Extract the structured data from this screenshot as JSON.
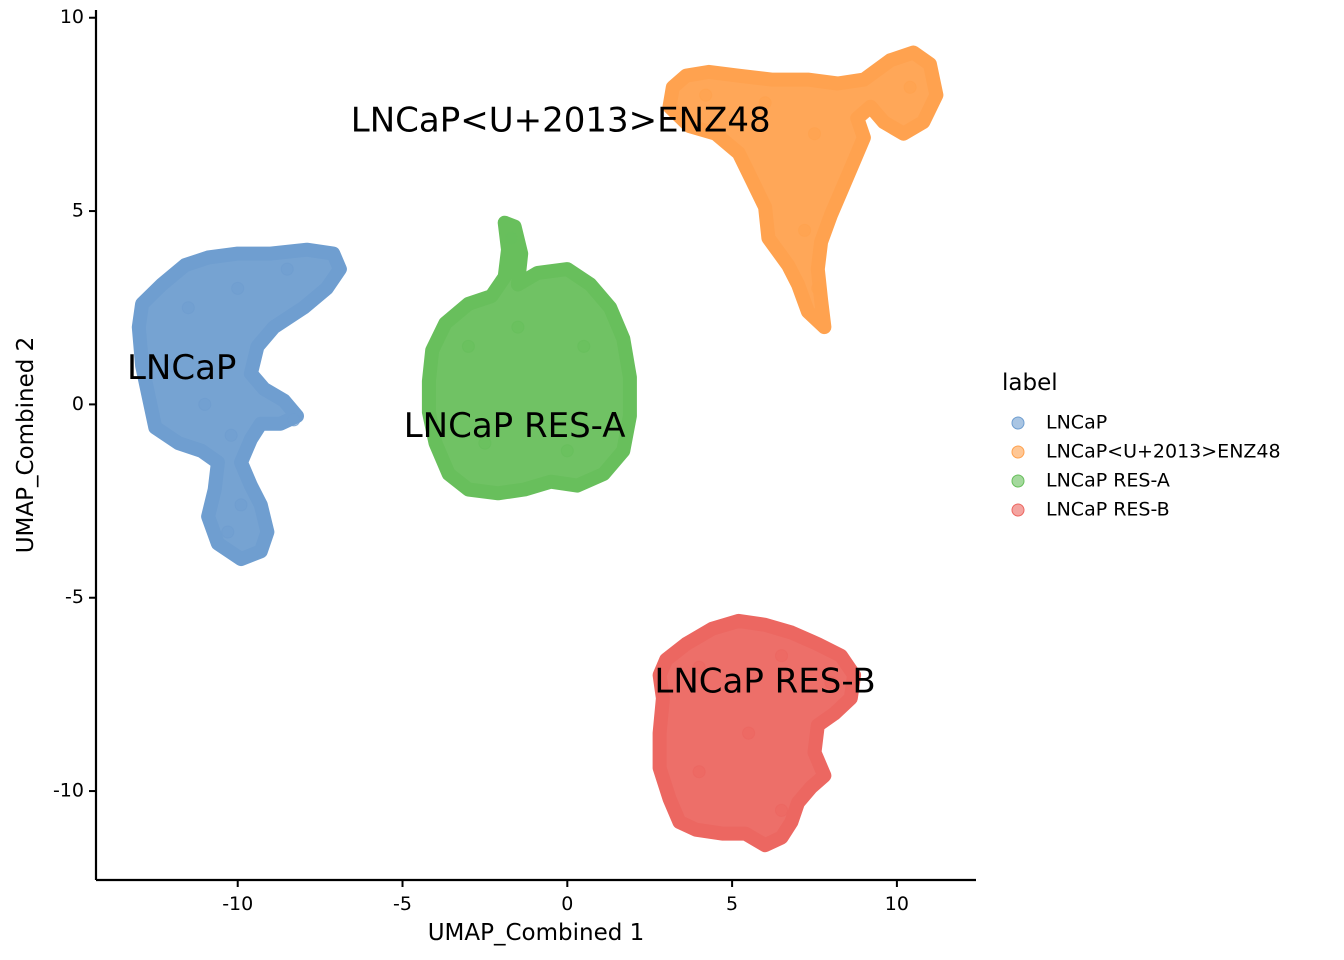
{
  "chart_data": {
    "type": "scatter",
    "title": "",
    "xlabel": "UMAP_Combined 1",
    "ylabel": "UMAP_Combined 2",
    "xlim": [
      -14.3,
      12.4
    ],
    "ylim": [
      -12.3,
      10.2
    ],
    "x_ticks": [
      -10,
      -5,
      0,
      5,
      10
    ],
    "y_ticks": [
      -10,
      -5,
      0,
      5,
      10
    ],
    "grid": false,
    "legend": {
      "title": "label",
      "placement": "right",
      "entries": [
        "LNCaP",
        "LNCaP<U+2013>ENZ48",
        "LNCaP RES-A",
        "LNCaP RES-B"
      ]
    },
    "series": [
      {
        "name": "LNCaP",
        "color": "#6f9ed0",
        "label_position": [
          -11.7,
          0.9
        ],
        "outline": [
          [
            -13.0,
            2.0
          ],
          [
            -12.9,
            2.6
          ],
          [
            -12.3,
            3.1
          ],
          [
            -11.6,
            3.6
          ],
          [
            -10.9,
            3.8
          ],
          [
            -10.0,
            3.9
          ],
          [
            -9.0,
            3.9
          ],
          [
            -7.9,
            4.0
          ],
          [
            -7.1,
            3.9
          ],
          [
            -6.9,
            3.5
          ],
          [
            -7.3,
            3.0
          ],
          [
            -8.0,
            2.5
          ],
          [
            -8.9,
            2.0
          ],
          [
            -9.4,
            1.5
          ],
          [
            -9.6,
            0.8
          ],
          [
            -9.2,
            0.4
          ],
          [
            -8.6,
            0.1
          ],
          [
            -8.2,
            -0.3
          ],
          [
            -8.7,
            -0.5
          ],
          [
            -9.3,
            -0.5
          ],
          [
            -9.6,
            -0.9
          ],
          [
            -9.9,
            -1.5
          ],
          [
            -9.6,
            -2.1
          ],
          [
            -9.3,
            -2.6
          ],
          [
            -9.1,
            -3.3
          ],
          [
            -9.3,
            -3.8
          ],
          [
            -9.9,
            -4.0
          ],
          [
            -10.6,
            -3.6
          ],
          [
            -10.9,
            -2.9
          ],
          [
            -10.7,
            -2.2
          ],
          [
            -10.6,
            -1.5
          ],
          [
            -11.1,
            -1.2
          ],
          [
            -11.8,
            -1.0
          ],
          [
            -12.5,
            -0.6
          ],
          [
            -12.7,
            0.2
          ],
          [
            -12.9,
            1.0
          ]
        ],
        "points": [
          [
            -11.5,
            2.5
          ],
          [
            -10.0,
            3.0
          ],
          [
            -8.5,
            3.5
          ],
          [
            -12.0,
            1.0
          ],
          [
            -11.0,
            0.0
          ],
          [
            -10.2,
            -0.8
          ],
          [
            -9.9,
            -2.6
          ],
          [
            -10.3,
            -3.3
          ],
          [
            -8.3,
            -0.4
          ]
        ]
      },
      {
        "name": "LNCaP<U+2013>ENZ48",
        "color": "#ffa24f",
        "label_position": [
          -0.2,
          7.3
        ],
        "outline": [
          [
            3.1,
            7.7
          ],
          [
            3.2,
            8.2
          ],
          [
            3.6,
            8.5
          ],
          [
            4.3,
            8.6
          ],
          [
            5.2,
            8.5
          ],
          [
            6.2,
            8.4
          ],
          [
            7.3,
            8.4
          ],
          [
            8.2,
            8.3
          ],
          [
            9.0,
            8.4
          ],
          [
            9.8,
            8.9
          ],
          [
            10.5,
            9.1
          ],
          [
            11.0,
            8.8
          ],
          [
            11.2,
            8.0
          ],
          [
            10.8,
            7.3
          ],
          [
            10.2,
            7.0
          ],
          [
            9.6,
            7.3
          ],
          [
            9.2,
            7.7
          ],
          [
            8.8,
            7.4
          ],
          [
            9.0,
            6.9
          ],
          [
            8.7,
            6.3
          ],
          [
            8.3,
            5.5
          ],
          [
            8.0,
            4.9
          ],
          [
            7.7,
            4.2
          ],
          [
            7.6,
            3.5
          ],
          [
            7.7,
            2.7
          ],
          [
            7.8,
            2.0
          ],
          [
            7.3,
            2.4
          ],
          [
            7.0,
            3.1
          ],
          [
            6.7,
            3.6
          ],
          [
            6.1,
            4.3
          ],
          [
            6.0,
            5.1
          ],
          [
            5.6,
            5.8
          ],
          [
            5.2,
            6.5
          ],
          [
            4.5,
            7.0
          ],
          [
            3.7,
            7.2
          ]
        ],
        "points": [
          [
            4.2,
            8.0
          ],
          [
            6.0,
            7.8
          ],
          [
            7.5,
            7.0
          ],
          [
            10.4,
            8.2
          ],
          [
            7.2,
            4.5
          ],
          [
            7.6,
            3.0
          ]
        ]
      },
      {
        "name": "LNCaP RES-A",
        "color": "#68bf5c",
        "label_position": [
          -1.6,
          -0.6
        ],
        "outline": [
          [
            -4.2,
            0.6
          ],
          [
            -4.1,
            1.4
          ],
          [
            -3.7,
            2.1
          ],
          [
            -3.0,
            2.6
          ],
          [
            -2.3,
            2.8
          ],
          [
            -1.9,
            3.3
          ],
          [
            -1.8,
            4.0
          ],
          [
            -1.9,
            4.7
          ],
          [
            -1.6,
            4.6
          ],
          [
            -1.4,
            3.9
          ],
          [
            -1.5,
            3.1
          ],
          [
            -0.9,
            3.4
          ],
          [
            0.0,
            3.5
          ],
          [
            0.7,
            3.1
          ],
          [
            1.3,
            2.5
          ],
          [
            1.7,
            1.7
          ],
          [
            1.9,
            0.7
          ],
          [
            1.9,
            -0.3
          ],
          [
            1.7,
            -1.2
          ],
          [
            1.1,
            -1.8
          ],
          [
            0.3,
            -2.1
          ],
          [
            -0.5,
            -2.0
          ],
          [
            -1.3,
            -2.2
          ],
          [
            -2.1,
            -2.3
          ],
          [
            -3.0,
            -2.2
          ],
          [
            -3.6,
            -1.8
          ],
          [
            -4.0,
            -1.0
          ],
          [
            -4.2,
            -0.2
          ]
        ],
        "points": [
          [
            -3.0,
            1.5
          ],
          [
            -1.5,
            2.0
          ],
          [
            0.5,
            1.5
          ],
          [
            -2.5,
            -1.0
          ],
          [
            0.0,
            -1.2
          ],
          [
            -1.7,
            4.3
          ]
        ]
      },
      {
        "name": "LNCaP RES-B",
        "color": "#ec6761",
        "label_position": [
          6.0,
          -7.2
        ],
        "outline": [
          [
            2.8,
            -7.0
          ],
          [
            3.0,
            -6.6
          ],
          [
            3.6,
            -6.2
          ],
          [
            4.4,
            -5.8
          ],
          [
            5.2,
            -5.6
          ],
          [
            6.0,
            -5.7
          ],
          [
            6.8,
            -5.9
          ],
          [
            7.6,
            -6.2
          ],
          [
            8.3,
            -6.5
          ],
          [
            8.7,
            -7.0
          ],
          [
            8.6,
            -7.6
          ],
          [
            8.1,
            -8.0
          ],
          [
            7.6,
            -8.3
          ],
          [
            7.5,
            -9.0
          ],
          [
            7.8,
            -9.6
          ],
          [
            7.4,
            -9.9
          ],
          [
            7.0,
            -10.3
          ],
          [
            6.8,
            -10.8
          ],
          [
            6.5,
            -11.2
          ],
          [
            6.0,
            -11.4
          ],
          [
            5.4,
            -11.1
          ],
          [
            4.7,
            -11.1
          ],
          [
            3.9,
            -11.0
          ],
          [
            3.4,
            -10.8
          ],
          [
            3.1,
            -10.2
          ],
          [
            2.8,
            -9.4
          ],
          [
            2.8,
            -8.5
          ],
          [
            2.9,
            -7.6
          ]
        ],
        "points": [
          [
            4.0,
            -6.8
          ],
          [
            6.5,
            -6.5
          ],
          [
            5.5,
            -8.5
          ],
          [
            4.0,
            -9.5
          ],
          [
            6.5,
            -10.5
          ],
          [
            8.0,
            -7.2
          ]
        ]
      }
    ]
  }
}
